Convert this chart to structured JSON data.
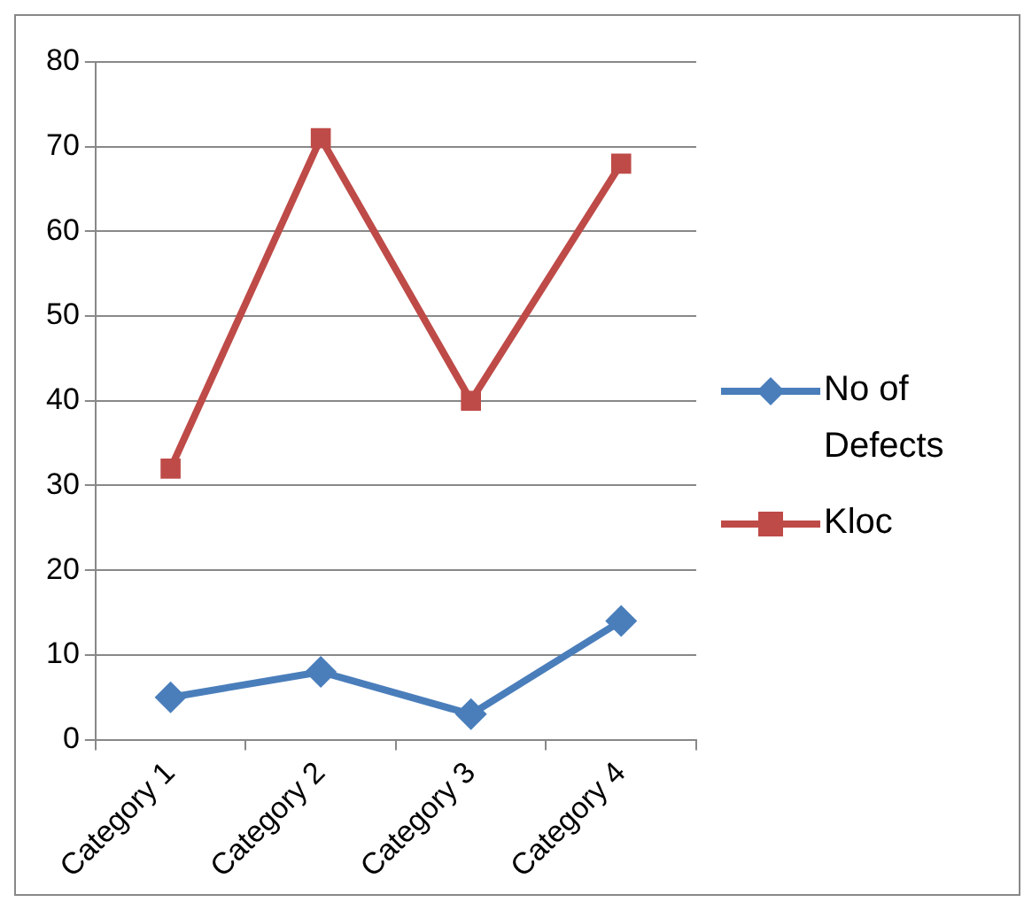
{
  "chart_data": {
    "type": "line",
    "categories": [
      "Category 1",
      "Category 2",
      "Category 3",
      "Category 4"
    ],
    "series": [
      {
        "name": "No of Defects",
        "color": "#4a7ebb",
        "values": [
          5,
          8,
          3,
          14
        ],
        "marker": "diamond"
      },
      {
        "name": "Kloc",
        "color": "#be4b48",
        "values": [
          32,
          71,
          40,
          68
        ],
        "marker": "square"
      }
    ],
    "ylim": [
      0,
      80
    ],
    "yticks": [
      0,
      10,
      20,
      30,
      40,
      50,
      60,
      70,
      80
    ],
    "grid": "y",
    "legend": "right"
  }
}
